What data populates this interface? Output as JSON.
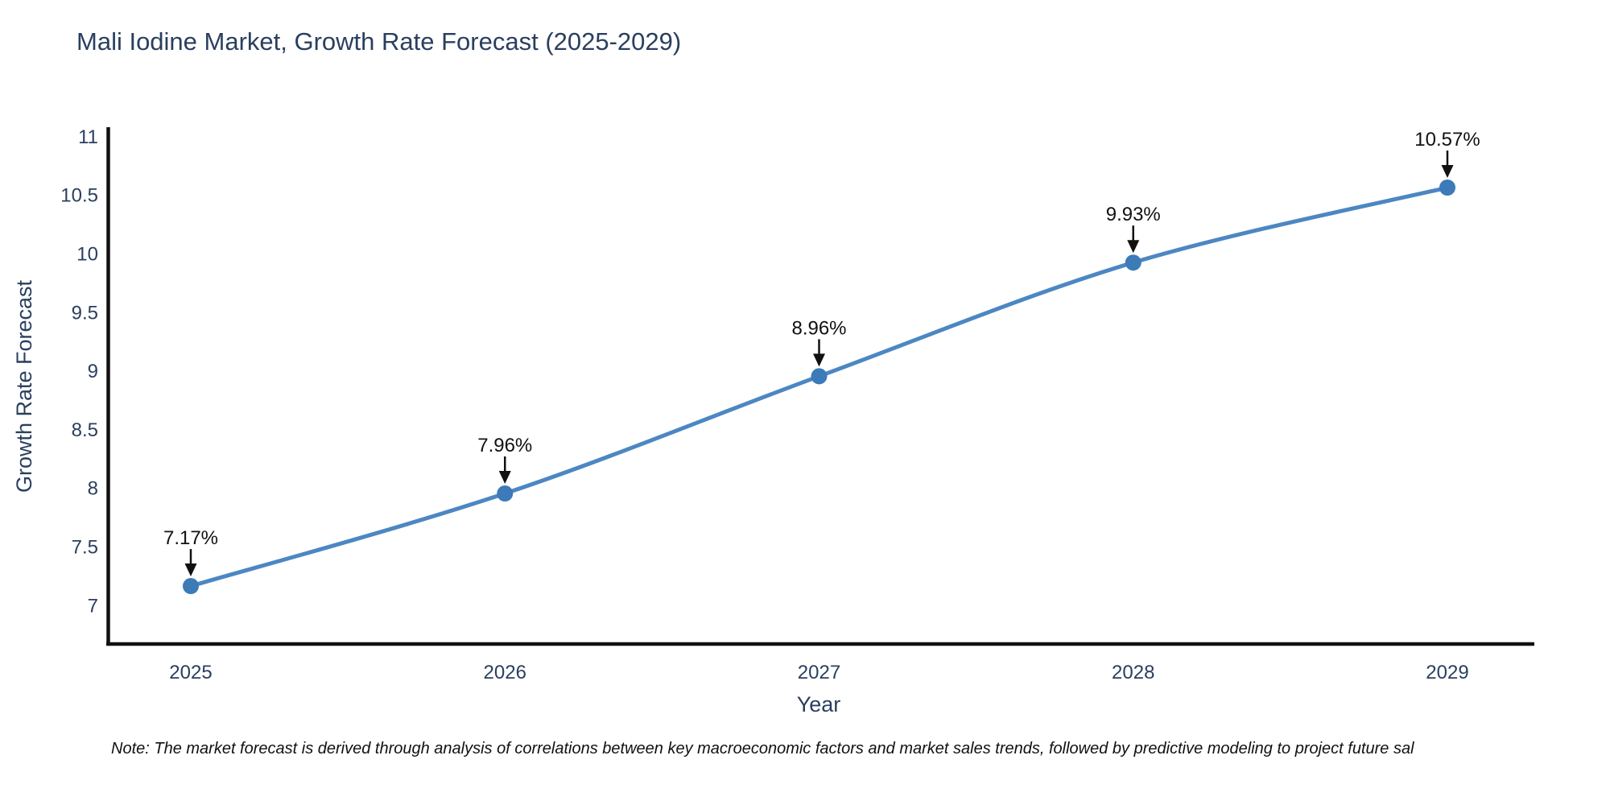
{
  "chart": {
    "title": "Mali Iodine Market, Growth Rate Forecast (2025-2029)",
    "x_axis_title": "Year",
    "y_axis_title": "Growth Rate Forecast",
    "note": "Note: The market forecast is derived through analysis of correlations between key macroeconomic factors and market sales trends, followed by predictive modeling to project future sal"
  },
  "chart_data": {
    "type": "line",
    "title": "Mali Iodine Market, Growth Rate Forecast (2025-2029)",
    "xlabel": "Year",
    "ylabel": "Growth Rate Forecast",
    "x": [
      2025,
      2026,
      2027,
      2028,
      2029
    ],
    "x_tick_labels": [
      "2025",
      "2026",
      "2027",
      "2028",
      "2029"
    ],
    "values": [
      7.17,
      7.96,
      8.96,
      9.93,
      10.57
    ],
    "point_labels": [
      "7.17%",
      "7.96%",
      "8.96%",
      "9.93%",
      "10.57%"
    ],
    "y_ticks": [
      7,
      7.5,
      8,
      8.5,
      9,
      9.5,
      10,
      10.5,
      11
    ],
    "y_tick_labels": [
      "7",
      "7.5",
      "8",
      "8.5",
      "9",
      "9.5",
      "10",
      "10.5",
      "11"
    ],
    "ylim": [
      6.69,
      11.08
    ],
    "grid": false,
    "legend": "none",
    "line_shape": "spline",
    "annotations": "value labels with down arrows above each point",
    "colors": {
      "line": "#4c87c2",
      "marker": "#3c7ab8",
      "axis": "#111111",
      "tick_text": "#2a3f5f",
      "annotation_text": "#111111"
    }
  }
}
